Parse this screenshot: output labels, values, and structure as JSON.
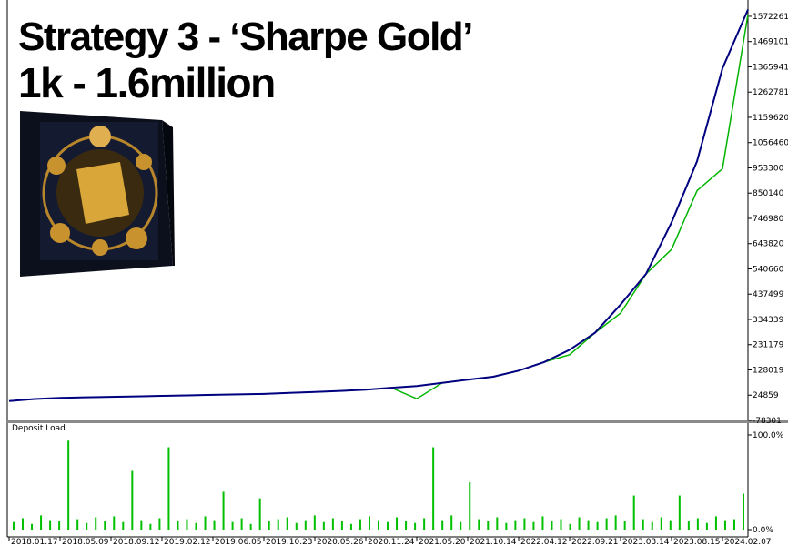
{
  "chart_data": [
    {
      "type": "line",
      "title": "Strategy 3 - ‘Sharpe Gold’",
      "subtitle": "1k - 1.6million",
      "x": [
        "2018.01.17",
        null,
        "2018.05.09",
        null,
        "2018.09.12",
        null,
        "2019.02.12",
        null,
        "2019.06.05",
        null,
        "2019.10.23",
        null,
        "2020.05.26",
        null,
        "2020.11.24",
        null,
        "2021.05.20",
        null,
        "2021.10.14",
        null,
        "2022.04.12",
        null,
        "2022.09.21",
        null,
        "2023.03.14",
        null,
        "2023.08.15",
        null,
        "2024.02.07",
        null
      ],
      "series": [
        {
          "color": "#00b400",
          "values": [
            1000,
            9000,
            14000,
            16000,
            18000,
            20000,
            22000,
            24000,
            26000,
            28000,
            30000,
            34000,
            38000,
            42000,
            47000,
            55000,
            10000,
            75000,
            88000,
            100000,
            125000,
            160000,
            190000,
            280000,
            360000,
            520000,
            620000,
            860000,
            950000,
            1580000
          ]
        },
        {
          "color": "#000080",
          "values": [
            1000,
            9000,
            14000,
            16000,
            18000,
            20000,
            22000,
            24000,
            26000,
            28000,
            30000,
            34000,
            38000,
            42000,
            47000,
            55000,
            62000,
            75000,
            88000,
            100000,
            125000,
            160000,
            210000,
            280000,
            395000,
            520000,
            730000,
            980000,
            1360000,
            1600000
          ]
        }
      ],
      "ylim": [
        -78301,
        1639000
      ],
      "yticks": [
        1572261,
        1469101,
        1365941,
        1262781,
        1159620,
        1056460,
        953300,
        850140,
        746980,
        643820,
        540660,
        437499,
        334339,
        231179,
        128019,
        24859,
        -78301
      ]
    },
    {
      "type": "bar",
      "title": "Deposit Load",
      "color": "#00c000",
      "values": [
        8,
        12,
        6,
        15,
        10,
        9,
        94,
        11,
        7,
        13,
        9,
        14,
        8,
        62,
        10,
        6,
        12,
        87,
        9,
        11,
        7,
        14,
        10,
        40,
        8,
        12,
        6,
        33,
        9,
        11,
        13,
        7,
        10,
        15,
        8,
        12,
        9,
        6,
        11,
        14,
        10,
        8,
        13,
        9,
        7,
        12,
        87,
        10,
        15,
        8,
        50,
        11,
        9,
        13,
        7,
        10,
        12,
        8,
        14,
        9,
        11,
        6,
        13,
        10,
        8,
        12,
        15,
        9,
        36,
        11,
        8,
        13,
        10,
        36,
        9,
        12,
        7,
        14,
        10,
        11,
        38
      ],
      "ylim": [
        0,
        100
      ],
      "yticks": [
        {
          "value": 100,
          "label": "100.0%"
        },
        {
          "value": 0,
          "label": "0.0%"
        }
      ]
    }
  ]
}
